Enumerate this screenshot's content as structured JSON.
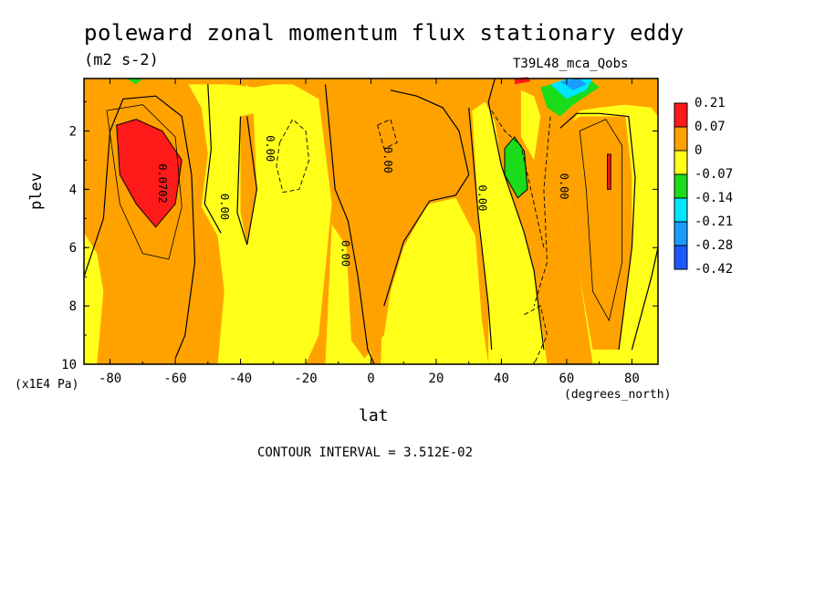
{
  "chart_data": {
    "type": "heatmap",
    "title": "poleward zonal momentum flux stationary eddy",
    "units": "(m2 s-2)",
    "run_label": "T39L48_mca_Qobs",
    "xlabel": "lat",
    "xunit": "(degrees_north)",
    "ylabel": "plev",
    "yunit": "(x1E4 Pa)",
    "xlim": [
      -88,
      88
    ],
    "ylim": [
      10,
      0.2
    ],
    "x_ticks": [
      -80,
      -60,
      -40,
      -20,
      0,
      20,
      40,
      60,
      80
    ],
    "y_ticks": [
      2,
      4,
      6,
      8,
      10
    ],
    "contour_interval_text": "CONTOUR INTERVAL = 3.512E-02",
    "contour_labels": [
      {
        "text": "0.0702",
        "lat": -65,
        "plev": 3.8
      },
      {
        "text": "0.00",
        "lat": -46,
        "plev": 4.6
      },
      {
        "text": "0.00",
        "lat": -32,
        "plev": 2.6
      },
      {
        "text": "0.00",
        "lat": -9,
        "plev": 6.2
      },
      {
        "text": "0.00",
        "lat": 4,
        "plev": 3.0
      },
      {
        "text": "0.00",
        "lat": 33,
        "plev": 4.3
      },
      {
        "text": "0.00",
        "lat": 58,
        "plev": 3.9
      }
    ],
    "colorbar": {
      "levels": [
        "0.21",
        "0.07",
        "0",
        "-0.07",
        "-0.14",
        "-0.21",
        "-0.28",
        "-0.42"
      ],
      "colors": [
        "#ff1a1a",
        "#ffa200",
        "#ffff1a",
        "#1adc1a",
        "#00e6ff",
        "#1a9cff",
        "#1a5aff"
      ]
    },
    "palette": {
      "red": "#ff1a1a",
      "orange": "#ffa200",
      "yellow": "#ffff1a",
      "green": "#1adc1a",
      "cyan": "#00e6ff",
      "blue": "#1a9cff",
      "darkblue": "#1a5aff"
    }
  }
}
